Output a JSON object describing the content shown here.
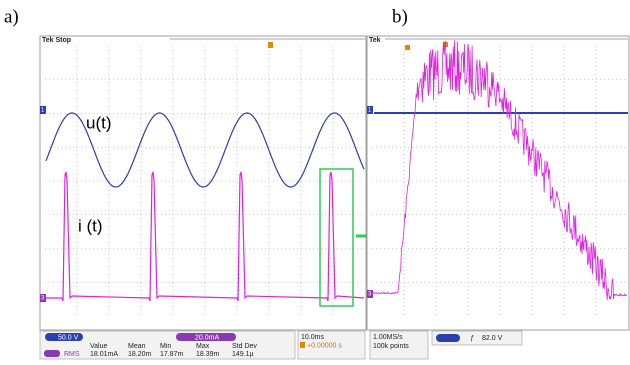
{
  "labels": {
    "a": "a)",
    "b": "b)"
  },
  "panel_a": {
    "header": "Tek Stop",
    "u_label": "u(t)",
    "i_label": "i (t)",
    "ch1_marker": "1",
    "ch3_marker": "3"
  },
  "panel_b": {
    "header": "Tek",
    "ch1_marker": "1",
    "ch3_marker": "3"
  },
  "readouts": {
    "ch1_scale": "50.0 V",
    "ch3_scale": "20.0mA",
    "headers": [
      "Value",
      "Mean",
      "Min",
      "Max",
      "Std Dev"
    ],
    "row_label": "RMS",
    "row": [
      "18.01mA",
      "18.20m",
      "17.87m",
      "18.39m",
      "149.1µ"
    ],
    "timebase": "10.0ms",
    "trigger_pos": "+0.00000 s",
    "sample_rate": "1.00MS/s",
    "record": "100k points",
    "trigger_level": "82.0 V"
  }
}
